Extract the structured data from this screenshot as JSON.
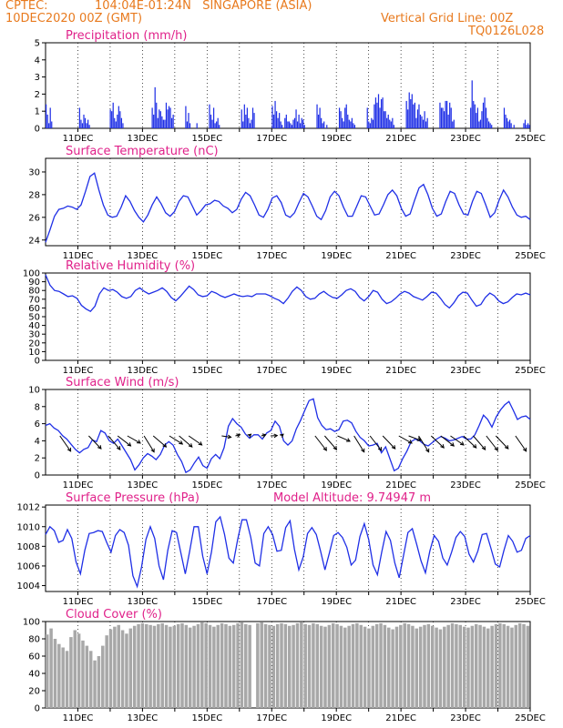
{
  "header": {
    "source": "CPTEC:",
    "location": "104:04E-01:24N   SINGAPORE (ASIA)",
    "init_time": "10DEC2020 00Z (GMT)",
    "grid_note": "Vertical Grid Line: 00Z",
    "model_code": "TQ0126L028",
    "model_altitude": "Model Altitude: 9.74947 m"
  },
  "colors": {
    "header": "#e87a1e",
    "title": "#e0218a",
    "series": "#1f2fe6",
    "cloud": "#a8a8a8"
  },
  "date_labels": [
    "11DEC",
    "13DEC",
    "15DEC",
    "17DEC",
    "19DEC",
    "21DEC",
    "23DEC",
    "25DEC"
  ],
  "chart_data": [
    {
      "type": "bar",
      "title": "Precipitation (mm/h)",
      "ylim": [
        0,
        5
      ],
      "yticks": [
        "0",
        "1",
        "2",
        "3",
        "4",
        "5"
      ],
      "x_range_days": [
        0,
        15
      ],
      "values": [
        1.4,
        0.8,
        0.3,
        1.2,
        0.4,
        0,
        0,
        0,
        0,
        0,
        0,
        0,
        0,
        0,
        0,
        0,
        0,
        0,
        0,
        0,
        0,
        0,
        0,
        0,
        1.2,
        0.5,
        0.3,
        0.8,
        0.6,
        0.3,
        0.5,
        0.2,
        0,
        0,
        0,
        0,
        0,
        0,
        0,
        0,
        0,
        0,
        0,
        0,
        0,
        0,
        1.1,
        1.0,
        1.5,
        0.6,
        0.4,
        0.8,
        1.3,
        1.0,
        0.6,
        0.3,
        0,
        0,
        0,
        0,
        0,
        0,
        0,
        0,
        0,
        0,
        0,
        0,
        0,
        0,
        0,
        0,
        0,
        0,
        0,
        0,
        1.2,
        0.8,
        2.4,
        1.5,
        0.6,
        1.1,
        1.0,
        0.7,
        0.5,
        0.5,
        1.5,
        1.1,
        1.3,
        1.2,
        0.6,
        0.8,
        0,
        0,
        0,
        0,
        0,
        0,
        0,
        0,
        1.3,
        0.4,
        0.9,
        0.3,
        0,
        0,
        0,
        0,
        0.3,
        0,
        0,
        0,
        0,
        0,
        0,
        0,
        0,
        1.4,
        0.8,
        0.5,
        1.2,
        0.3,
        0.4,
        0.6,
        0.2,
        0,
        0,
        0,
        0,
        0,
        0,
        0,
        0,
        0,
        0,
        0,
        0,
        0,
        0,
        0,
        1.1,
        0.4,
        1.4,
        0.8,
        1.2,
        0.6,
        0.3,
        0.5,
        1.2,
        0.9,
        0,
        0,
        0,
        0,
        0,
        0,
        0,
        0,
        0,
        0,
        0,
        0,
        1.3,
        0.8,
        1.6,
        1.0,
        0.6,
        0.9,
        0.4,
        0.2,
        0,
        0.6,
        0.8,
        0.4,
        0.4,
        0.3,
        0.2,
        0.5,
        0.6,
        1.1,
        0.4,
        0.8,
        0.3,
        0.6,
        0.5,
        0.2,
        0,
        0,
        0,
        0,
        0,
        0,
        0,
        0,
        1.4,
        0.8,
        1.2,
        0.6,
        0.3,
        0.4,
        0,
        0.2,
        0,
        0,
        0,
        0,
        0,
        0,
        0,
        0,
        1.2,
        1.0,
        0.6,
        0.4,
        1.2,
        1.4,
        0.8,
        0.5,
        0.4,
        0.6,
        0.3,
        0.2,
        0,
        0,
        0,
        0,
        0,
        0,
        0,
        0,
        1.2,
        0.4,
        0.3,
        0.6,
        0.5,
        1.4,
        1.8,
        1.5,
        2.0,
        1.2,
        1.7,
        1.8,
        1.0,
        1.0,
        0.6,
        0.8,
        0.5,
        0.4,
        0.6,
        0.2,
        0,
        0,
        0,
        0,
        0,
        0,
        0,
        0,
        1.6,
        1.1,
        2.1,
        1.7,
        2.0,
        1.4,
        1.5,
        0.6,
        1.1,
        1.4,
        0.8,
        0.7,
        0.5,
        1.0,
        0.4,
        0.6,
        0,
        0,
        0,
        0,
        0,
        0,
        0,
        0,
        1.5,
        1.2,
        1.2,
        1.0,
        1.6,
        1.6,
        0.8,
        1.5,
        1.2,
        0.4,
        0.5,
        0,
        0,
        0,
        0,
        0,
        0,
        0,
        0,
        0,
        0,
        0,
        1.2,
        2.8,
        1.6,
        1.4,
        0.9,
        1.2,
        0.4,
        0.5,
        1.0,
        1.5,
        1.8,
        1.2,
        0.6,
        0.4,
        0.3,
        0.2,
        0,
        0,
        0,
        0,
        0,
        0,
        0,
        0,
        1.2,
        0.8,
        0.6,
        0.4,
        0.5,
        0.3,
        0,
        0.2,
        0,
        0,
        0,
        0,
        0,
        0,
        0.3,
        0.5,
        0.2,
        0.3,
        0.2
      ]
    },
    {
      "type": "line",
      "title": "Surface Temperature (nC)",
      "ylim": [
        23.5,
        31.2
      ],
      "yticks": [
        "24",
        "26",
        "28",
        "30"
      ],
      "x_range_days": [
        0,
        15
      ],
      "values": [
        23.8,
        24.9,
        26.1,
        26.7,
        26.8,
        27.0,
        26.9,
        26.7,
        27.1,
        28.3,
        29.6,
        29.9,
        28.4,
        27.1,
        26.2,
        26.0,
        26.1,
        26.9,
        27.9,
        27.4,
        26.6,
        26.0,
        25.6,
        26.2,
        27.1,
        27.8,
        27.2,
        26.4,
        26.1,
        26.5,
        27.4,
        27.9,
        27.8,
        27.0,
        26.2,
        26.6,
        27.1,
        27.2,
        27.5,
        27.4,
        27.0,
        26.8,
        26.4,
        26.7,
        27.6,
        28.2,
        27.9,
        27.1,
        26.2,
        26.0,
        26.7,
        27.7,
        27.9,
        27.3,
        26.2,
        26.0,
        26.4,
        27.3,
        28.1,
        27.8,
        27.0,
        26.1,
        25.8,
        26.6,
        27.8,
        28.3,
        27.9,
        26.9,
        26.1,
        26.1,
        27.0,
        27.9,
        27.8,
        27.0,
        26.2,
        26.3,
        27.1,
        28.0,
        28.4,
        27.9,
        26.8,
        26.1,
        26.3,
        27.5,
        28.6,
        28.9,
        28.0,
        26.8,
        26.1,
        26.3,
        27.4,
        28.3,
        28.1,
        27.1,
        26.3,
        26.2,
        27.4,
        28.3,
        28.1,
        27.1,
        26.0,
        26.4,
        27.5,
        28.4,
        27.8,
        26.9,
        26.2,
        26.0,
        26.1,
        25.8
      ]
    },
    {
      "type": "line",
      "title": "Relative Humidity (%)",
      "ylim": [
        0,
        100
      ],
      "yticks": [
        "0",
        "10",
        "20",
        "30",
        "40",
        "50",
        "60",
        "70",
        "80",
        "90",
        "100"
      ],
      "x_range_days": [
        0,
        15
      ],
      "values": [
        98,
        86,
        80,
        79,
        76,
        73,
        74,
        71,
        63,
        59,
        56,
        62,
        76,
        83,
        80,
        81,
        78,
        73,
        71,
        73,
        80,
        83,
        79,
        76,
        78,
        80,
        83,
        79,
        72,
        68,
        73,
        79,
        85,
        81,
        75,
        73,
        74,
        79,
        77,
        74,
        72,
        74,
        76,
        74,
        73,
        74,
        73,
        76,
        76,
        76,
        74,
        71,
        69,
        65,
        71,
        79,
        84,
        80,
        73,
        70,
        71,
        76,
        79,
        75,
        72,
        71,
        75,
        80,
        82,
        79,
        72,
        68,
        73,
        80,
        78,
        70,
        65,
        67,
        71,
        76,
        79,
        77,
        73,
        71,
        69,
        73,
        78,
        77,
        71,
        64,
        60,
        66,
        74,
        78,
        77,
        69,
        62,
        64,
        72,
        77,
        74,
        68,
        65,
        67,
        72,
        76,
        75,
        77,
        75
      ]
    },
    {
      "type": "line",
      "title": "Surface Wind (m/s)",
      "ylim": [
        0,
        10
      ],
      "yticks": [
        "0",
        "2",
        "4",
        "6",
        "8",
        "10"
      ],
      "x_range_days": [
        0,
        15
      ],
      "values": [
        5.8,
        6.0,
        5.5,
        5.2,
        4.6,
        4.2,
        3.6,
        3.0,
        2.6,
        3.0,
        3.2,
        4.1,
        3.9,
        5.2,
        4.9,
        4.0,
        3.7,
        4.2,
        3.4,
        2.6,
        1.8,
        0.6,
        1.2,
        2.0,
        2.5,
        2.2,
        1.8,
        2.4,
        3.5,
        3.9,
        3.5,
        2.4,
        1.6,
        0.3,
        0.6,
        1.4,
        2.1,
        1.1,
        0.8,
        1.9,
        2.4,
        1.9,
        3.2,
        5.7,
        6.6,
        6.0,
        5.6,
        4.8,
        4.3,
        4.7,
        4.7,
        4.2,
        4.9,
        5.2,
        6.3,
        5.7,
        4.0,
        3.5,
        4.0,
        5.4,
        6.4,
        7.6,
        8.7,
        8.9,
        6.7,
        5.8,
        5.3,
        5.4,
        5.1,
        5.3,
        6.3,
        6.4,
        6.1,
        5.1,
        4.4,
        4.0,
        3.4,
        3.5,
        3.7,
        2.6,
        3.3,
        1.9,
        0.5,
        0.8,
        1.9,
        2.8,
        3.9,
        4.2,
        4.0,
        3.6,
        3.4,
        3.8,
        4.2,
        4.5,
        4.3,
        4.0,
        4.1,
        4.3,
        4.5,
        4.2,
        4.2,
        4.7,
        5.8,
        7.0,
        6.5,
        5.6,
        6.8,
        7.6,
        8.2,
        8.6,
        7.6,
        6.5,
        6.8,
        6.9,
        6.5
      ]
    },
    {
      "type": "line",
      "title": "Surface Pressure (hPa)",
      "ylim": [
        1003.4,
        1012.2
      ],
      "yticks": [
        "1004",
        "1006",
        "1008",
        "1010",
        "1012"
      ],
      "x_range_days": [
        0,
        15
      ],
      "values": [
        1009.2,
        1010.0,
        1009.6,
        1008.4,
        1008.6,
        1009.7,
        1008.8,
        1006.4,
        1005.2,
        1007.6,
        1009.3,
        1009.4,
        1009.6,
        1009.5,
        1008.4,
        1007.4,
        1009.1,
        1009.7,
        1009.4,
        1008.1,
        1005.0,
        1003.9,
        1005.9,
        1008.7,
        1010.0,
        1008.8,
        1006.0,
        1004.6,
        1007.6,
        1009.6,
        1009.4,
        1007.3,
        1005.2,
        1007.5,
        1010.0,
        1010.0,
        1007.0,
        1005.2,
        1007.4,
        1010.5,
        1011.0,
        1009.2,
        1006.8,
        1006.3,
        1008.7,
        1010.7,
        1010.7,
        1008.9,
        1006.3,
        1006.0,
        1009.3,
        1010.0,
        1009.2,
        1007.5,
        1007.6,
        1009.9,
        1010.6,
        1007.7,
        1005.6,
        1006.9,
        1009.3,
        1009.9,
        1009.2,
        1007.5,
        1005.6,
        1007.3,
        1009.1,
        1009.4,
        1008.9,
        1007.9,
        1006.1,
        1006.6,
        1009.0,
        1010.3,
        1008.7,
        1006.1,
        1005.1,
        1007.4,
        1009.5,
        1008.6,
        1006.3,
        1004.8,
        1007.1,
        1009.4,
        1009.8,
        1008.2,
        1006.5,
        1005.3,
        1007.5,
        1009.1,
        1008.5,
        1006.8,
        1006.1,
        1007.4,
        1008.9,
        1009.5,
        1009.0,
        1007.2,
        1006.4,
        1007.5,
        1009.2,
        1009.3,
        1007.8,
        1006.2,
        1005.9,
        1007.6,
        1009.1,
        1008.5,
        1007.4,
        1007.6,
        1008.8,
        1009.1
      ]
    },
    {
      "type": "bar",
      "title": "Cloud Cover (%)",
      "ylim": [
        0,
        100
      ],
      "yticks": [
        "0",
        "20",
        "40",
        "60",
        "80",
        "100"
      ],
      "x_range_days": [
        0,
        15
      ],
      "values": [
        85,
        92,
        80,
        74,
        70,
        66,
        82,
        90,
        86,
        78,
        72,
        66,
        55,
        60,
        72,
        84,
        91,
        94,
        96,
        90,
        86,
        92,
        95,
        97,
        98,
        97,
        96,
        95,
        97,
        98,
        96,
        94,
        95,
        97,
        98,
        96,
        93,
        95,
        97,
        99,
        98,
        96,
        94,
        96,
        98,
        97,
        95,
        96,
        98,
        99,
        97,
        96,
        0,
        98,
        99,
        97,
        96,
        95,
        97,
        98,
        97,
        95,
        96,
        98,
        99,
        97,
        96,
        98,
        97,
        95,
        94,
        96,
        98,
        97,
        95,
        93,
        95,
        97,
        98,
        96,
        94,
        92,
        95,
        97,
        98,
        96,
        93,
        91,
        94,
        96,
        98,
        97,
        95,
        92,
        94,
        96,
        97,
        95,
        93,
        91,
        94,
        96,
        98,
        97,
        96,
        94,
        93,
        95,
        97,
        96,
        94,
        92,
        95,
        97,
        98,
        97,
        95,
        93,
        96,
        98,
        97,
        95
      ]
    }
  ],
  "wind_arrows": [
    {
      "day": 0.5,
      "dir": 35
    },
    {
      "day": 1.4,
      "dir": 20
    },
    {
      "day": 2.0,
      "dir": 25
    },
    {
      "day": 2.3,
      "dir": 5
    },
    {
      "day": 2.6,
      "dir": -10
    },
    {
      "day": 3.1,
      "dir": 40
    },
    {
      "day": 3.4,
      "dir": 10
    },
    {
      "day": 3.9,
      "dir": -5
    },
    {
      "day": 4.2,
      "dir": 10
    },
    {
      "day": 4.5,
      "dir": 0
    },
    {
      "day": 5.5,
      "dir": -45
    },
    {
      "day": 5.9,
      "dir": -70
    },
    {
      "day": 6.3,
      "dir": -80
    },
    {
      "day": 6.7,
      "dir": -70
    },
    {
      "day": 7.0,
      "dir": -60
    },
    {
      "day": 7.3,
      "dir": -80
    },
    {
      "day": 8.4,
      "dir": 30
    },
    {
      "day": 8.7,
      "dir": 25
    },
    {
      "day": 9.1,
      "dir": -20
    },
    {
      "day": 9.6,
      "dir": 40
    },
    {
      "day": 10.1,
      "dir": 30
    },
    {
      "day": 10.5,
      "dir": 20
    },
    {
      "day": 11.0,
      "dir": -10
    },
    {
      "day": 11.3,
      "dir": -25
    },
    {
      "day": 11.6,
      "dir": 40
    },
    {
      "day": 12.0,
      "dir": 15
    },
    {
      "day": 12.3,
      "dir": 5
    },
    {
      "day": 12.6,
      "dir": 0
    },
    {
      "day": 13.0,
      "dir": 15
    },
    {
      "day": 13.3,
      "dir": 25
    },
    {
      "day": 13.7,
      "dir": 30
    },
    {
      "day": 14.0,
      "dir": 20
    },
    {
      "day": 14.6,
      "dir": 35
    }
  ]
}
